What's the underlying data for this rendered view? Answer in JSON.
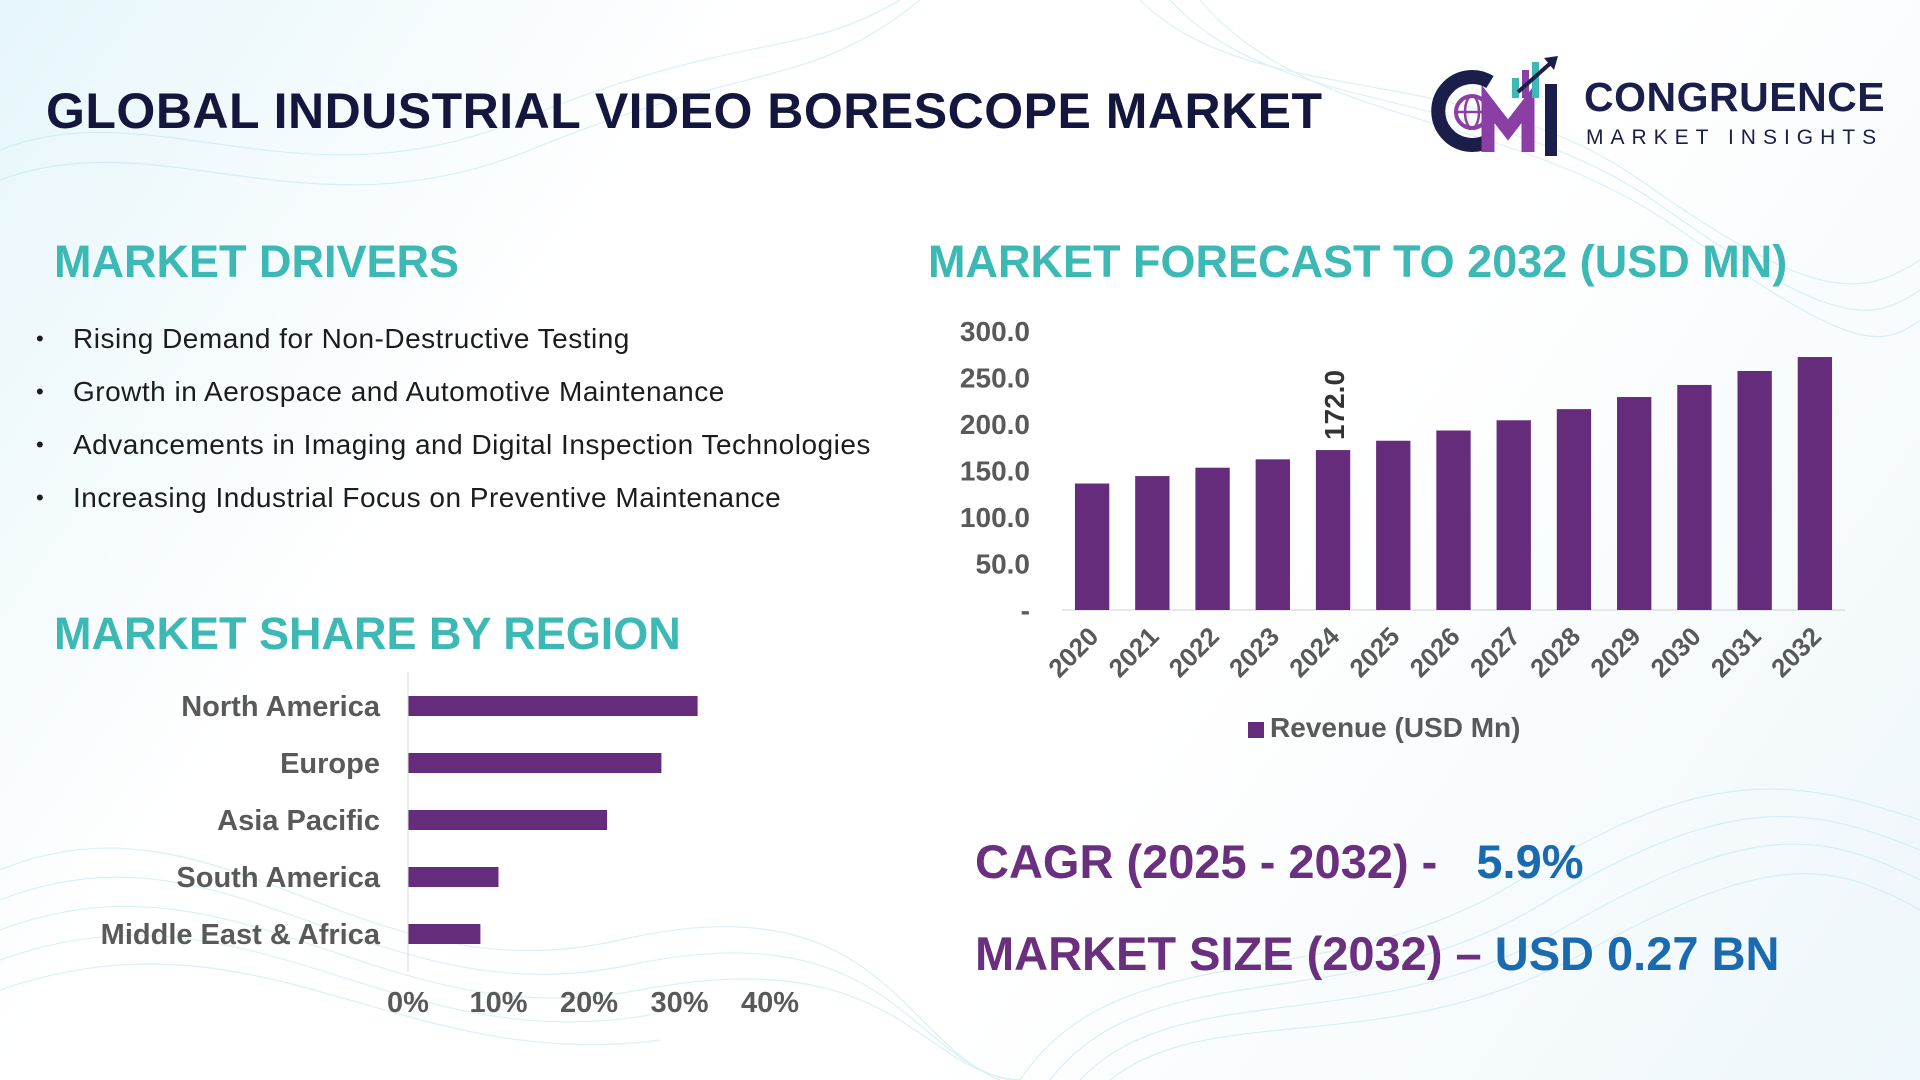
{
  "header": {
    "title": "GLOBAL INDUSTRIAL VIDEO BORESCOPE MARKET",
    "logo": {
      "name": "CONGRUENCE",
      "tagline": "MARKET INSIGHTS",
      "mark_letters": "CMI"
    }
  },
  "drivers": {
    "title": "MARKET DRIVERS",
    "items": [
      "Rising Demand for Non-Destructive Testing",
      "Growth in Aerospace and Automotive Maintenance",
      "Advancements in Imaging and Digital Inspection Technologies",
      "Increasing Industrial Focus on Preventive Maintenance"
    ]
  },
  "forecast": {
    "title": "MARKET FORECAST TO 2032 (USD MN)"
  },
  "share": {
    "title": "MARKET SHARE BY REGION"
  },
  "kpis": {
    "cagr_label": "CAGR (2025 - 2032) -",
    "cagr_value": "5.9%",
    "size_label": "MARKET SIZE (2032) –",
    "size_value": "USD 0.27 BN"
  },
  "colors": {
    "bar": "#642c7a",
    "accent": "#3cb8b5",
    "title": "#14163d",
    "kpi_value": "#1a6ab0",
    "kpi_label": "#6b2f7f"
  },
  "chart_data": [
    {
      "type": "bar",
      "categories": [
        "2020",
        "2021",
        "2022",
        "2023",
        "2024",
        "2025",
        "2026",
        "2027",
        "2028",
        "2029",
        "2030",
        "2031",
        "2032"
      ],
      "series": [
        {
          "name": "Revenue (USD Mn)",
          "values": [
            136,
            144,
            153,
            162,
            172,
            182,
            193,
            204,
            216,
            229,
            242,
            257,
            272
          ]
        }
      ],
      "ylim": [
        0,
        300
      ],
      "yticks": [
        "-",
        "50.0",
        "100.0",
        "150.0",
        "200.0",
        "250.0",
        "300.0"
      ],
      "data_labels": [
        {
          "category": "2024",
          "text": "172.0"
        }
      ],
      "legend": "bottom",
      "grid": false
    },
    {
      "type": "bar",
      "orientation": "horizontal",
      "categories": [
        "North America",
        "Europe",
        "Asia Pacific",
        "South America",
        "Middle East & Africa"
      ],
      "values": [
        32,
        28,
        22,
        10,
        8
      ],
      "xlim": [
        0,
        40
      ],
      "xticks": [
        "0%",
        "10%",
        "20%",
        "30%",
        "40%"
      ],
      "grid": false
    }
  ]
}
